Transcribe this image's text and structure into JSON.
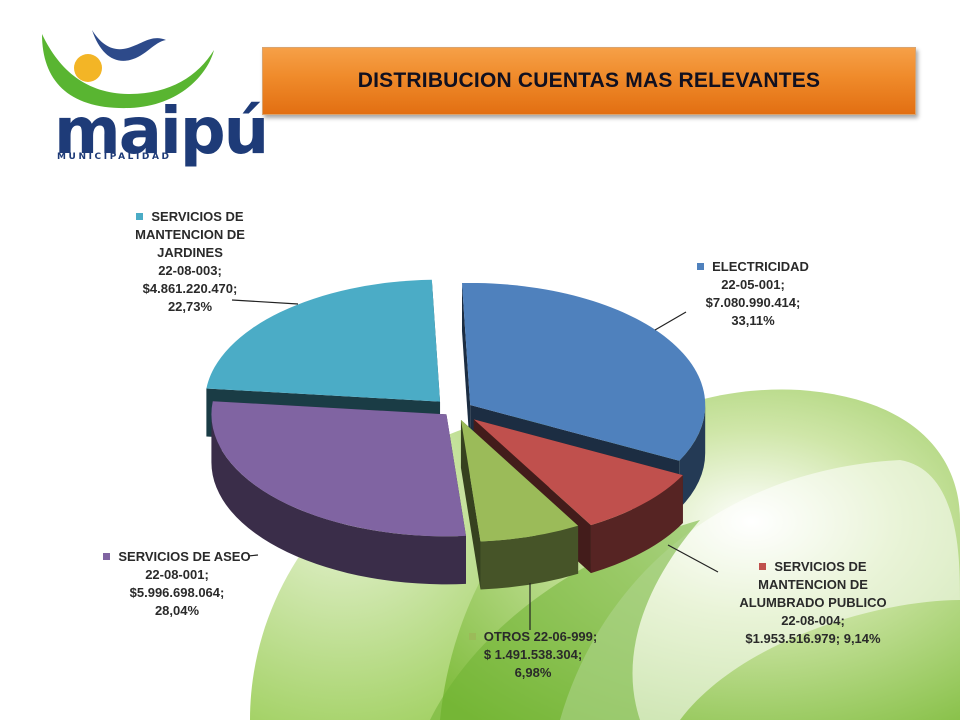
{
  "logo": {
    "wordmark": "maipú",
    "subtitle": "MUNICIPALIDAD"
  },
  "title": "DISTRIBUCION CUENTAS MAS RELEVANTES",
  "colors": {
    "accent_orange": "#ef8a2a",
    "background_green": "#8cc63f"
  },
  "chart_data": {
    "type": "pie",
    "style": "3d-exploded",
    "title": "DISTRIBUCION CUENTAS MAS RELEVANTES",
    "slices": [
      {
        "key": "electricidad",
        "name": "ELECTRICIDAD",
        "code": "22-05-001;",
        "amount": "$7.080.990.414;",
        "percent_label": "33,11%",
        "percent": 33.11,
        "color": "#4f81bd",
        "label_lines": [
          "ELECTRICIDAD",
          "22-05-001;",
          "$7.080.990.414;",
          "33,11%"
        ]
      },
      {
        "key": "alumbrado",
        "name": "SERVICIOS DE MANTENCION DE ALUMBRADO PUBLICO",
        "code": "22-08-004;",
        "amount": "$1.953.516.979;",
        "percent_label": "9,14%",
        "percent": 9.14,
        "color": "#c0504d",
        "label_lines": [
          "SERVICIOS DE",
          "MANTENCION DE",
          "ALUMBRADO PUBLICO",
          "22-08-004;",
          "$1.953.516.979; 9,14%"
        ]
      },
      {
        "key": "otros",
        "name": "OTROS",
        "code": "22-06-999;",
        "amount": "$ 1.491.538.304;",
        "percent_label": "6,98%",
        "percent": 6.98,
        "color": "#9bbb59",
        "label_lines": [
          "OTROS 22-06-999;",
          "$ 1.491.538.304;",
          "6,98%"
        ]
      },
      {
        "key": "aseo",
        "name": "SERVICIOS DE ASEO",
        "code": "22-08-001;",
        "amount": "$5.996.698.064;",
        "percent_label": "28,04%",
        "percent": 28.04,
        "color": "#8064a2",
        "label_lines": [
          "SERVICIOS DE ASEO",
          "22-08-001;",
          "$5.996.698.064;",
          "28,04%"
        ]
      },
      {
        "key": "jardines",
        "name": "SERVICIOS DE MANTENCION DE JARDINES",
        "code": "22-08-003;",
        "amount": "$4.861.220.470;",
        "percent_label": "22,73%",
        "percent": 22.73,
        "color": "#4bacc6",
        "label_lines": [
          "SERVICIOS DE",
          "MANTENCION DE",
          "JARDINES",
          "22-08-003;",
          "$4.861.220.470;",
          "22,73%"
        ]
      }
    ]
  }
}
